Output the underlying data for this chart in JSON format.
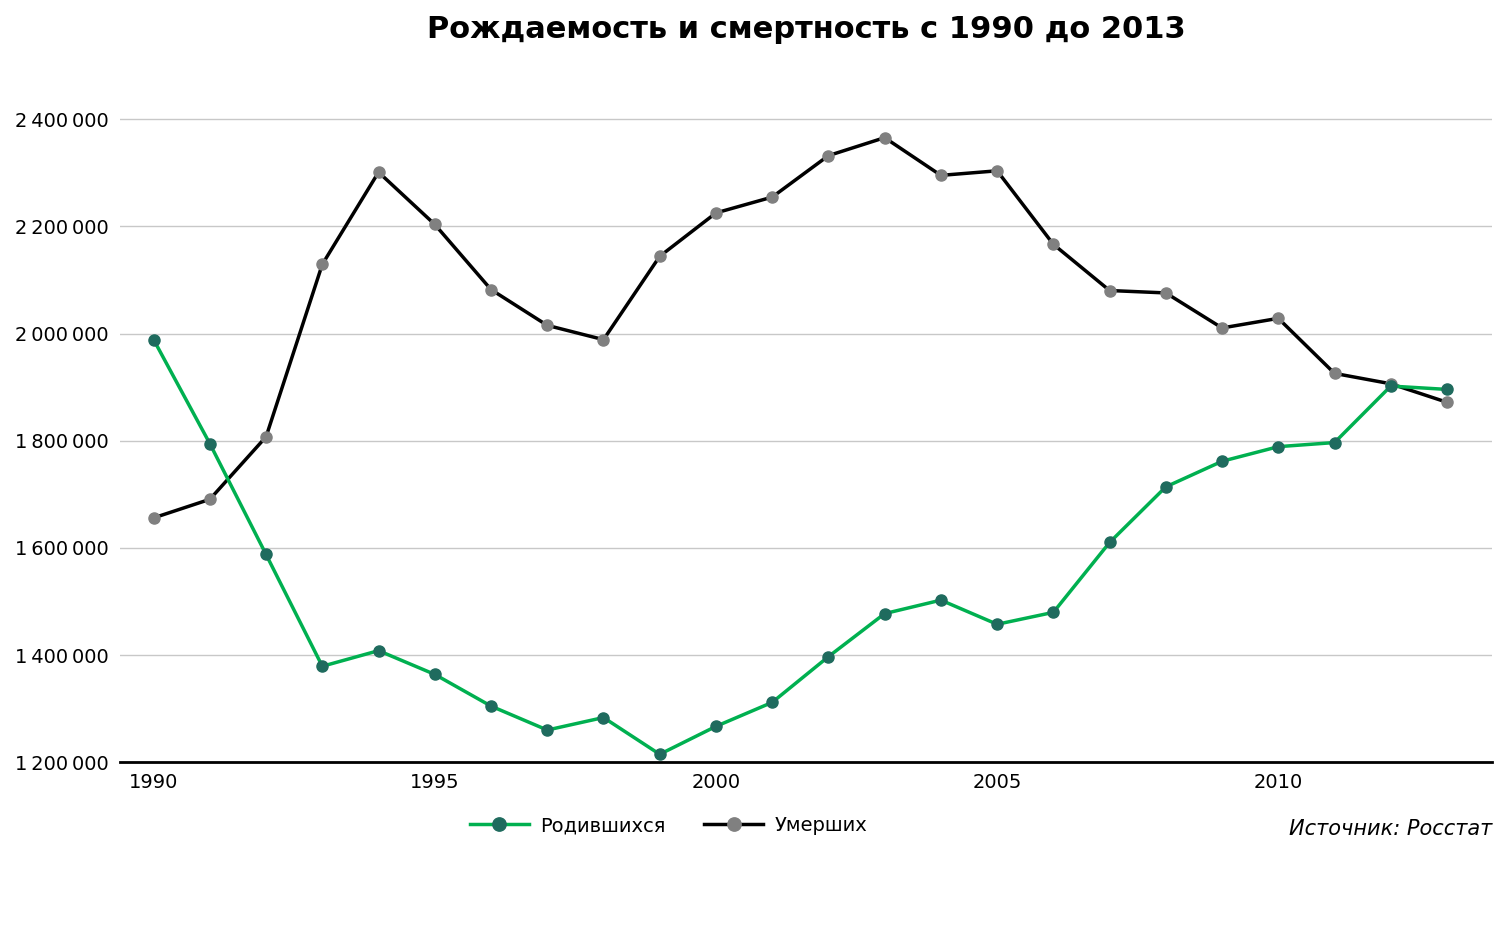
{
  "title": "Рождаемость и смертность с 1990 до 2013",
  "source_text": "Источник: Росстат",
  "years": [
    1990,
    1991,
    1992,
    1993,
    1994,
    1995,
    1996,
    1997,
    1998,
    1999,
    2000,
    2001,
    2002,
    2003,
    2004,
    2005,
    2006,
    2007,
    2008,
    2009,
    2010,
    2011,
    2012,
    2013
  ],
  "births": [
    1988858,
    1794626,
    1587644,
    1378983,
    1408159,
    1363806,
    1304638,
    1259943,
    1283292,
    1214689,
    1266800,
    1311604,
    1396967,
    1477301,
    1502477,
    1457376,
    1479637,
    1610122,
    1713947,
    1761687,
    1788948,
    1796629,
    1902084,
    1895822
  ],
  "deaths": [
    1655993,
    1690657,
    1807441,
    2129339,
    2301366,
    2203811,
    2082249,
    2015413,
    1988744,
    2144316,
    2225332,
    2254856,
    2332272,
    2365826,
    2295402,
    2303935,
    2166703,
    2080445,
    2075954,
    2010543,
    2028516,
    1925720,
    1906335,
    1871809
  ],
  "birth_color": "#00b050",
  "birth_marker_color": "#1f6b5e",
  "death_color": "#000000",
  "death_marker_color": "#808080",
  "ylim": [
    1200000,
    2500000
  ],
  "yticks": [
    1200000,
    1400000,
    1600000,
    1800000,
    2000000,
    2200000,
    2400000
  ],
  "background_color": "#ffffff",
  "grid_color": "#c8c8c8",
  "legend_birth": "Родившихся",
  "legend_death": "Умерших",
  "title_fontsize": 22,
  "tick_fontsize": 14,
  "legend_fontsize": 14,
  "source_fontsize": 15
}
